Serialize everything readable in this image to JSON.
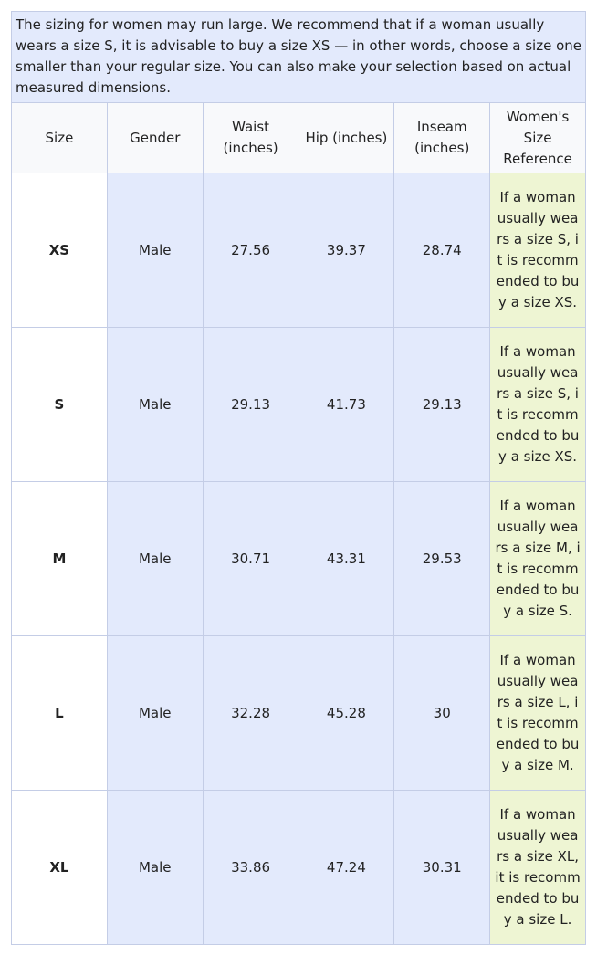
{
  "note": "The sizing for women may run large. We recommend that if a woman usually wears a size S, it is advisable to buy a size XS — in other words, choose a size one smaller than your regular size. You can also make your selection based on actual measured dimensions.",
  "headers": [
    "Size",
    "Gender",
    "Waist (inches)",
    "Hip (inches)",
    "Inseam (inches)",
    "Women's Size Reference"
  ],
  "rows": [
    {
      "size": "XS",
      "gender": "Male",
      "waist": "27.56",
      "hip": "39.37",
      "inseam": "28.74",
      "ref": "If a woman usually wears a size S, it is recommended to buy a size XS."
    },
    {
      "size": "S",
      "gender": "Male",
      "waist": "29.13",
      "hip": "41.73",
      "inseam": "29.13",
      "ref": "If a woman usually wears a size S, it is recommended to buy a size XS."
    },
    {
      "size": "M",
      "gender": "Male",
      "waist": "30.71",
      "hip": "43.31",
      "inseam": "29.53",
      "ref": "If a woman usually wears a size M, it is recommended to buy a size S."
    },
    {
      "size": "L",
      "gender": "Male",
      "waist": "32.28",
      "hip": "45.28",
      "inseam": "30",
      "ref": "If a woman usually wears a size L, it is recommended to buy a size M."
    },
    {
      "size": "XL",
      "gender": "Male",
      "waist": "33.86",
      "hip": "47.24",
      "inseam": "30.31",
      "ref": "If a woman usually wears a size XL, it is recommended to buy a size L."
    }
  ],
  "colors": {
    "note_bg": "#e3eafc",
    "cell_bg": "#e3eafc",
    "ref_bg": "#eef5d3",
    "border": "#c4cde6"
  }
}
